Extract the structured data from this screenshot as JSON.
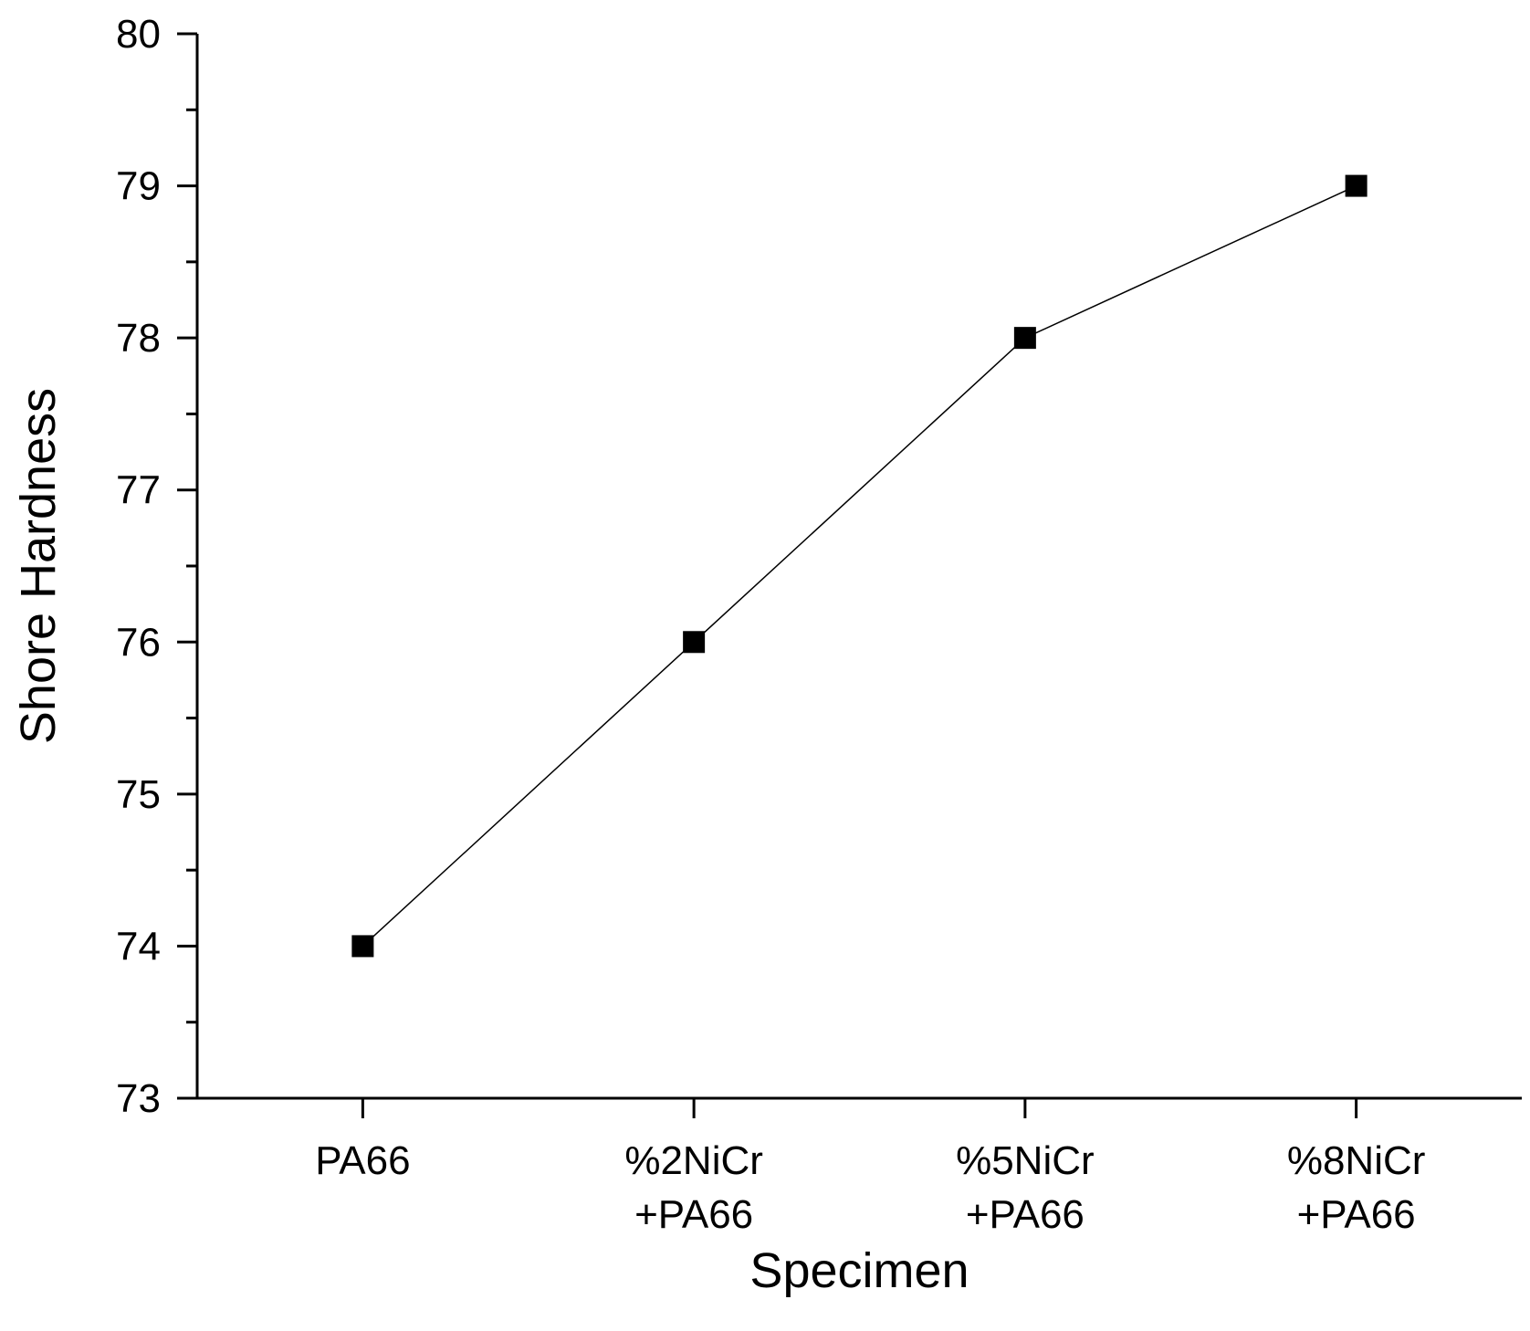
{
  "chart_data": {
    "type": "line",
    "title": "",
    "xlabel": "Specimen",
    "ylabel": "Shore Hardness",
    "categories": [
      [
        "PA66"
      ],
      [
        "%2NiCr",
        "+PA66"
      ],
      [
        "%5NiCr",
        "+PA66"
      ],
      [
        "%8NiCr",
        "+PA66"
      ]
    ],
    "series": [
      {
        "values": [
          74,
          76,
          78,
          79
        ],
        "marker": "square",
        "color": "#000000"
      }
    ],
    "ylim": [
      73,
      80
    ],
    "yticks": [
      "73",
      "74",
      "75",
      "76",
      "77",
      "78",
      "79",
      "80"
    ],
    "y_minor_step": 0.5,
    "grid": false,
    "legend": "none"
  }
}
